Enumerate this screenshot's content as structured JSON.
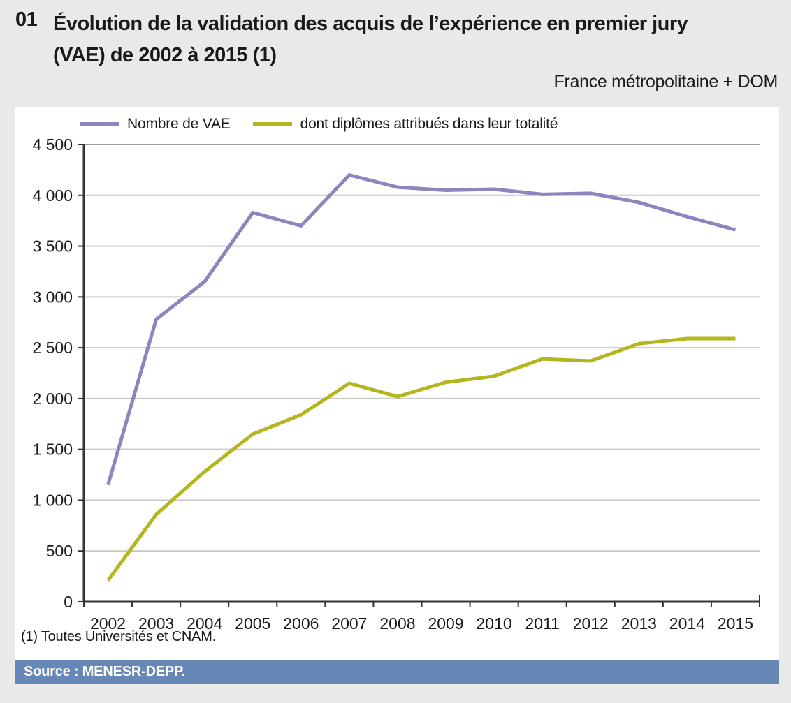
{
  "header": {
    "number": "01",
    "title_lines": [
      "Évolution de la validation des acquis de l’expérience en premier jury",
      "(VAE) de 2002 à 2015 (1)"
    ],
    "subtitle": "France métropolitaine + DOM"
  },
  "footnote": "(1) Toutes Universités et CNAM.",
  "source": "Source : MENESR-DEPP.",
  "colors": {
    "background": "#e9e9e8",
    "panel": "#ffffff",
    "axis": "#333333",
    "grid": "#c8c8c8",
    "grid_top": "#9f9f9f",
    "text": "#1a1a1a",
    "source_bar": "#6787b7",
    "source_text": "#ffffff"
  },
  "chart_data": {
    "type": "line",
    "categories": [
      "2002",
      "2003",
      "2004",
      "2005",
      "2006",
      "2007",
      "2008",
      "2009",
      "2010",
      "2011",
      "2012",
      "2013",
      "2014",
      "2015"
    ],
    "series": [
      {
        "name": "Nombre de VAE",
        "color": "#8b86bd",
        "values": [
          1150,
          2780,
          3150,
          3830,
          3700,
          4200,
          4080,
          4050,
          4060,
          4010,
          4020,
          3930,
          3790,
          3660
        ]
      },
      {
        "name": "dont diplômes attribués dans leur totalité",
        "color": "#b3b61f",
        "values": [
          210,
          860,
          1280,
          1650,
          1840,
          2150,
          2020,
          2160,
          2220,
          2390,
          2370,
          2540,
          2590,
          2590
        ]
      }
    ],
    "ylim": [
      0,
      4500
    ],
    "ytick_step": 500,
    "ytick_labels": [
      "0",
      "500",
      "1 000",
      "1 500",
      "2 000",
      "2 500",
      "3 000",
      "3 500",
      "4 000",
      "4 500"
    ],
    "grid": true,
    "legend_position": "top"
  }
}
